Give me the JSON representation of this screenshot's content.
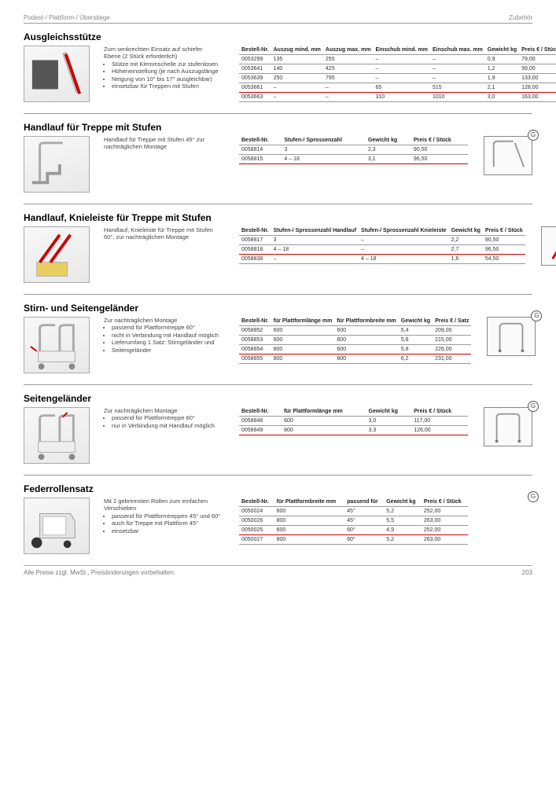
{
  "header": {
    "category": "Podest-/ Plattform-/ Überstiege",
    "subcategory": "Zubehör"
  },
  "badge": "G",
  "sections": [
    {
      "title": "Ausgleichsstütze",
      "desc_lines": [
        "Zum senkrechten Einsatz auf schiefer",
        "Ebene (2 Stück erforderlich)"
      ],
      "note_lines": [
        "Stütze mit Klemmschelle zur stufenlosen",
        "Höheneinstellung (je nach Auszugslänge",
        "Neigung von 10° bis 17° ausgleichbar)",
        "einsetzbar für Treppen mit Stufen"
      ],
      "headers": [
        "Bestell-Nr.",
        "Auszug mind. mm",
        "Auszug max. mm",
        "Einschub mind. mm",
        "Einschub max. mm",
        "Gewicht kg",
        "Preis € / Stück"
      ],
      "rows": [
        [
          "0053299",
          "135",
          "255",
          "–",
          "–",
          "0,9",
          "79,00"
        ],
        [
          "0053641",
          "140",
          "425",
          "–",
          "–",
          "1,2",
          "99,00"
        ],
        [
          "0053639",
          "250",
          "795",
          "–",
          "–",
          "1,9",
          "133,00"
        ],
        [
          "0053661",
          "–",
          "–",
          "65",
          "515",
          "2,1",
          "128,00"
        ],
        [
          "0053663",
          "–",
          "–",
          "310",
          "1010",
          "3,0",
          "163,00"
        ]
      ],
      "red_before_last": true,
      "thumb": "stütze",
      "mini": "bars"
    },
    {
      "title": "Handlauf für Treppe mit Stufen",
      "desc_lines": [
        "Handlauf für Treppe mit Stufen 45° zur",
        "nachträglichen Montage"
      ],
      "note_lines": [],
      "headers": [
        "Bestell-Nr.",
        "Stufen-/ Sprossenzahl",
        "Gewicht kg",
        "Preis € / Stück"
      ],
      "rows": [
        [
          "0058814",
          "3",
          "2,3",
          "90,50"
        ],
        [
          "0058815",
          "4 – 18",
          "3,1",
          "96,50"
        ]
      ],
      "red_before_last": false,
      "thumb": "handlauf",
      "mini": "rail"
    },
    {
      "title": "Handlauf, Knieleiste für Treppe mit Stufen",
      "desc_lines": [
        "Handlauf, Knieleiste für Treppe mit Stufen",
        "60°, zur nachträglichen Montage"
      ],
      "note_lines": [],
      "headers": [
        "Bestell-Nr.",
        "Stufen-/ Sprossenzahl Handlauf",
        "Stufen-/ Sprossenzahl Knieleiste",
        "Gewicht kg",
        "Preis € / Stück"
      ],
      "rows": [
        [
          "0058817",
          "3",
          "–",
          "2,2",
          "90,50"
        ],
        [
          "0058818",
          "4 – 18",
          "–",
          "2,7",
          "96,50"
        ],
        [
          "0058838",
          "–",
          "4 – 18",
          "1,6",
          "54,50"
        ]
      ],
      "red_before_last": true,
      "thumb": "knieleiste",
      "mini": "angle"
    },
    {
      "title": "Stirn- und Seitengeländer",
      "desc_lines": [
        "Zur nachträglichen Montage"
      ],
      "note_lines": [
        "passend für Plattformtreppe 60°",
        "nicht in Verbindung mit Handlauf möglich",
        "Lieferumfang 1 Satz: Stirngeländer und",
        "Seitengeländer"
      ],
      "headers": [
        "Bestell-Nr.",
        "für Plattformlänge mm",
        "für Plattformbreite mm",
        "Gewicht kg",
        "Preis € / Satz"
      ],
      "rows": [
        [
          "0058852",
          "600",
          "600",
          "5,4",
          "209,00"
        ],
        [
          "0058853",
          "600",
          "800",
          "5,8",
          "215,00"
        ],
        [
          "0058854",
          "800",
          "600",
          "5,8",
          "226,00"
        ],
        [
          "0058855",
          "800",
          "800",
          "6,2",
          "231,00"
        ]
      ],
      "red_before_last": true,
      "thumb": "geländer2",
      "mini": "urail"
    },
    {
      "title": "Seitengeländer",
      "desc_lines": [
        "Zur nachträglichen Montage"
      ],
      "note_lines": [
        "passend für Plattformtreppe 60°",
        "nur in Verbindung mit Handlauf möglich"
      ],
      "headers": [
        "Bestell-Nr.",
        "für Plattformlänge mm",
        "Gewicht kg",
        "Preis € / Stück"
      ],
      "rows": [
        [
          "0058848",
          "600",
          "3,0",
          "117,00"
        ],
        [
          "0058849",
          "800",
          "3,3",
          "126,00"
        ]
      ],
      "red_before_last": false,
      "thumb": "geländer1",
      "mini": "urail"
    },
    {
      "title": "Federrollensatz",
      "desc_lines": [
        "Mit 2 gebremsten Rollen zum einfachen",
        "Verschieben"
      ],
      "note_lines": [
        "passend für Plattformtreppen 45° und 60°",
        "auch für Treppe mit Plattform 45°",
        "einsetzbar"
      ],
      "headers": [
        "Bestell-Nr.",
        "für Plattformbreite mm",
        "passend für",
        "Gewicht kg",
        "Preis € / Stück"
      ],
      "rows": [
        [
          "0050024",
          "600",
          "45°",
          "5,2",
          "252,00"
        ],
        [
          "0050026",
          "800",
          "45°",
          "5,5",
          "263,00"
        ],
        [
          "0050025",
          "600",
          "60°",
          "4,9",
          "252,00"
        ],
        [
          "0050027",
          "800",
          "60°",
          "5,2",
          "263,00"
        ]
      ],
      "red_before_last": true,
      "thumb": "rollen",
      "mini": null
    }
  ],
  "footer": {
    "note": "Alle Preise zzgl. MwSt., Preisänderungen vorbehalten.",
    "page": "203"
  }
}
